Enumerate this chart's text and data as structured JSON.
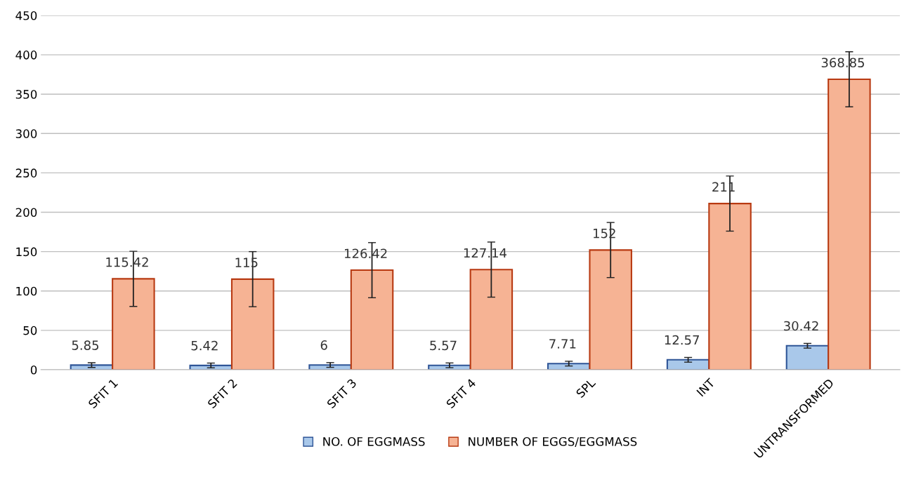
{
  "chart_data": {
    "type": "bar",
    "categories": [
      "SFIT 1",
      "SFIT 2",
      "SFIT 3",
      "SFIT 4",
      "SPL",
      "INT",
      "UNTRANSFORMED"
    ],
    "series": [
      {
        "name": "NO. OF EGGMASS",
        "color": "#a9c8ea",
        "values": [
          5.85,
          5.42,
          6,
          5.57,
          7.71,
          12.57,
          30.42
        ],
        "errors": [
          3,
          3,
          3,
          3,
          3,
          3,
          3
        ]
      },
      {
        "name": "NUMBER OF EGGS/EGGMASS",
        "color": "#f6b394",
        "values": [
          115.42,
          115,
          126.42,
          127.14,
          152,
          211,
          368.85
        ],
        "errors": [
          35,
          35,
          35,
          35,
          35,
          35,
          35
        ]
      }
    ],
    "ylim": [
      0,
      450
    ],
    "yticks": [
      0,
      50,
      100,
      150,
      200,
      250,
      300,
      350,
      400,
      450
    ],
    "grid": "y",
    "legend": "bottom",
    "data_labels": true
  }
}
